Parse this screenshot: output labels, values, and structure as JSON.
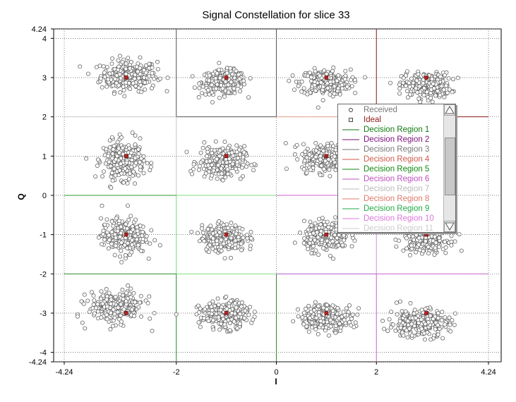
{
  "chart_data": {
    "type": "scatter",
    "title": "Signal Constellation for slice 33",
    "xlabel": "I",
    "ylabel": "Q",
    "xlim": [
      -4.24,
      4.24
    ],
    "ylim": [
      -4.24,
      4.24
    ],
    "x_ticks": [
      "-4.24",
      "-2",
      "0",
      "2",
      "4.24"
    ],
    "x_tick_values": [
      -4.24,
      -2,
      0,
      2,
      4.24
    ],
    "y_ticks": [
      "4.24",
      "4",
      "3",
      "2",
      "1",
      "0",
      "-1",
      "-2",
      "-3",
      "-4",
      "-4.24"
    ],
    "y_tick_values": [
      4.24,
      4,
      3,
      2,
      1,
      0,
      -1,
      -2,
      -3,
      -4,
      -4.24
    ],
    "grid": true,
    "legend_position": "right",
    "ideal_points": [
      {
        "x": -3,
        "y": 3
      },
      {
        "x": -1,
        "y": 3
      },
      {
        "x": 1,
        "y": 3
      },
      {
        "x": 3,
        "y": 3
      },
      {
        "x": -3,
        "y": 1
      },
      {
        "x": -1,
        "y": 1
      },
      {
        "x": 1,
        "y": 1
      },
      {
        "x": 3,
        "y": 1
      },
      {
        "x": -3,
        "y": -1
      },
      {
        "x": -1,
        "y": -1
      },
      {
        "x": 1,
        "y": -1
      },
      {
        "x": 3,
        "y": -1
      },
      {
        "x": -3,
        "y": -3
      },
      {
        "x": -1,
        "y": -3
      },
      {
        "x": 1,
        "y": -3
      },
      {
        "x": 3,
        "y": -3
      }
    ],
    "received_clusters": [
      {
        "x": -2.95,
        "y": 3.05,
        "sx": 0.28,
        "sy": 0.2
      },
      {
        "x": -1.05,
        "y": 2.88,
        "sx": 0.22,
        "sy": 0.15
      },
      {
        "x": 0.98,
        "y": 2.88,
        "sx": 0.25,
        "sy": 0.16
      },
      {
        "x": 3.0,
        "y": 2.8,
        "sx": 0.24,
        "sy": 0.16
      },
      {
        "x": -3.05,
        "y": 0.9,
        "sx": 0.2,
        "sy": 0.24
      },
      {
        "x": -1.1,
        "y": 0.85,
        "sx": 0.23,
        "sy": 0.2
      },
      {
        "x": 1.0,
        "y": 0.95,
        "sx": 0.24,
        "sy": 0.18
      },
      {
        "x": 3.05,
        "y": 0.9,
        "sx": 0.18,
        "sy": 0.2
      },
      {
        "x": -3.05,
        "y": -1.05,
        "sx": 0.22,
        "sy": 0.22
      },
      {
        "x": -1.05,
        "y": -1.08,
        "sx": 0.22,
        "sy": 0.17
      },
      {
        "x": 1.0,
        "y": -1.05,
        "sx": 0.22,
        "sy": 0.18
      },
      {
        "x": 3.0,
        "y": -1.1,
        "sx": 0.22,
        "sy": 0.18
      },
      {
        "x": -3.2,
        "y": -2.85,
        "sx": 0.28,
        "sy": 0.2
      },
      {
        "x": -1.05,
        "y": -3.05,
        "sx": 0.24,
        "sy": 0.17
      },
      {
        "x": 1.0,
        "y": -3.1,
        "sx": 0.26,
        "sy": 0.16
      },
      {
        "x": 2.85,
        "y": -3.25,
        "sx": 0.3,
        "sy": 0.18
      }
    ],
    "decision_boundaries": [
      {
        "x1": -2,
        "y1": 4.24,
        "x2": -2,
        "y2": 2,
        "color": "#555555"
      },
      {
        "x1": -2,
        "y1": 2,
        "x2": 0,
        "y2": 2,
        "color": "#555555"
      },
      {
        "x1": 0,
        "y1": 4.24,
        "x2": 0,
        "y2": 2,
        "color": "#555555"
      },
      {
        "x1": 2,
        "y1": 4.24,
        "x2": 2,
        "y2": 2,
        "color": "#8b1a1a"
      },
      {
        "x1": 2,
        "y1": 2,
        "x2": 4.24,
        "y2": 2,
        "color": "#8b1a1a"
      },
      {
        "x1": 0,
        "y1": 2,
        "x2": 2,
        "y2": 2,
        "color": "#e0a090"
      },
      {
        "x1": -4.24,
        "y1": 2,
        "x2": -2,
        "y2": 2,
        "color": "#cccccc"
      },
      {
        "x1": -2,
        "y1": 2,
        "x2": -2,
        "y2": 0,
        "color": "#cccccc"
      },
      {
        "x1": -4.24,
        "y1": 0,
        "x2": -2,
        "y2": 0,
        "color": "#2e9e2e"
      },
      {
        "x1": -2,
        "y1": 0,
        "x2": 0,
        "y2": 0,
        "color": "#7fdf7f"
      },
      {
        "x1": 0,
        "y1": 0,
        "x2": 2,
        "y2": 0,
        "color": "#cc66cc"
      },
      {
        "x1": -4.24,
        "y1": -2,
        "x2": -2,
        "y2": -2,
        "color": "#2e8b2e"
      },
      {
        "x1": -2,
        "y1": 0,
        "x2": -2,
        "y2": -2,
        "color": "#7fdf7f"
      },
      {
        "x1": -2,
        "y1": -2,
        "x2": -2,
        "y2": -4.24,
        "color": "#2e8b2e"
      },
      {
        "x1": -2,
        "y1": -2,
        "x2": 0,
        "y2": -2,
        "color": "#7fdf7f"
      },
      {
        "x1": 0,
        "y1": -2,
        "x2": 0,
        "y2": -4.24,
        "color": "#2e8b2e"
      },
      {
        "x1": 0,
        "y1": -2,
        "x2": 2,
        "y2": -2,
        "color": "#b060d0"
      },
      {
        "x1": 2,
        "y1": -2,
        "x2": 2,
        "y2": -4.24,
        "color": "#cc66cc"
      },
      {
        "x1": 2,
        "y1": -2,
        "x2": 4.24,
        "y2": -2,
        "color": "#cc66cc"
      },
      {
        "x1": 2,
        "y1": 0,
        "x2": 2,
        "y2": -2,
        "color": "#cc99dd"
      }
    ]
  },
  "legend": {
    "items": [
      {
        "label": "Received",
        "kind": "circle",
        "color": "#777777"
      },
      {
        "label": "Ideal",
        "kind": "square",
        "color": "#8b1a1a"
      },
      {
        "label": "Decision Region 1",
        "kind": "line",
        "color": "#0f7a0f"
      },
      {
        "label": "Decision Region 2",
        "kind": "line",
        "color": "#7a0f7a"
      },
      {
        "label": "Decision Region 3",
        "kind": "line",
        "color": "#777777"
      },
      {
        "label": "Decision Region 4",
        "kind": "line",
        "color": "#d05a4a"
      },
      {
        "label": "Decision Region 5",
        "kind": "line",
        "color": "#0f8a0f"
      },
      {
        "label": "Decision Region 6",
        "kind": "line",
        "color": "#c050c0"
      },
      {
        "label": "Decision Region 7",
        "kind": "line",
        "color": "#bbbbbb"
      },
      {
        "label": "Decision Region 8",
        "kind": "line",
        "color": "#e07a6a"
      },
      {
        "label": "Decision Region 9",
        "kind": "line",
        "color": "#22aa44"
      },
      {
        "label": "Decision Region 10",
        "kind": "line",
        "color": "#dd77dd"
      },
      {
        "label": "Decision Region 11",
        "kind": "line",
        "color": "#cccccc"
      }
    ],
    "scroll_up_icon": "triangle-up-icon",
    "scroll_down_icon": "triangle-down-icon"
  },
  "colors": {
    "received": "#666666",
    "ideal": "#b22222",
    "grid": "#555555"
  }
}
